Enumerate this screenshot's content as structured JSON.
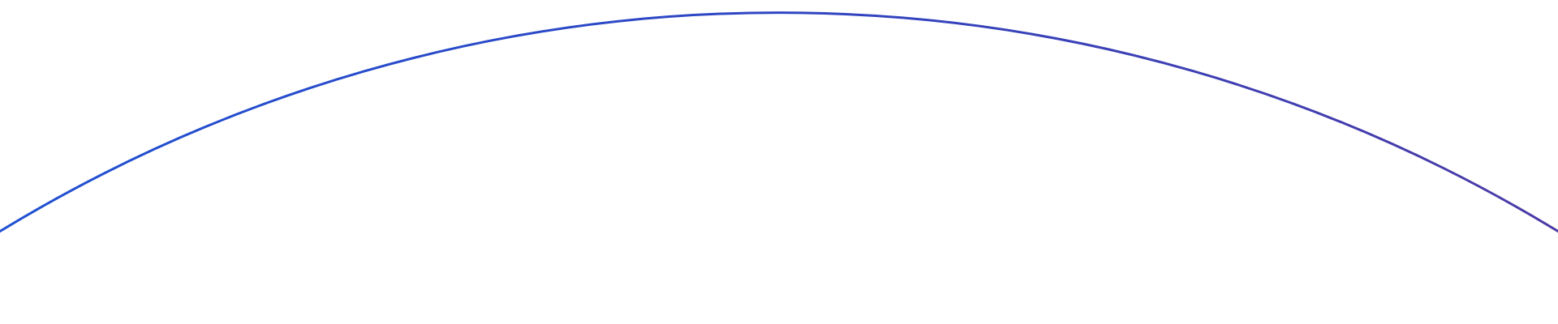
{
  "arc": {
    "stroke_start_color": "#1f50d2",
    "stroke_mid_color": "#2f45c2",
    "stroke_end_color": "#4a3aa6"
  }
}
